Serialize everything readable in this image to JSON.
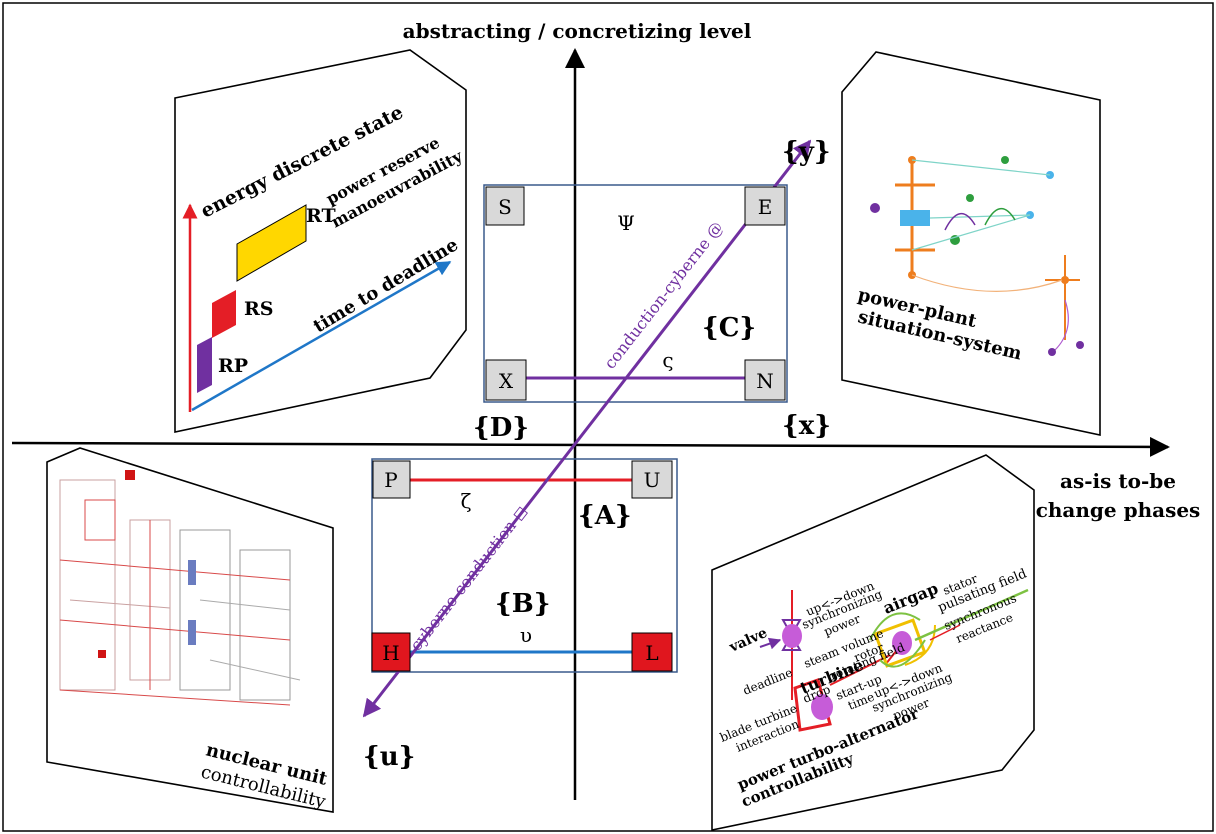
{
  "axes": {
    "vertical_label": "abstracting / concretizing level",
    "horizontal_label_line1": "as-is to-be",
    "horizontal_label_line2": "change phases"
  },
  "sets": {
    "y": "{y}",
    "x": "{x}",
    "u": "{u}",
    "A": "{A}",
    "B": "{B}",
    "C": "{C}",
    "D": "{D}"
  },
  "nodes": {
    "S": "S",
    "E": "E",
    "X": "X",
    "N": "N",
    "P": "P",
    "U": "U",
    "H": "H",
    "L": "L"
  },
  "edges": {
    "psi": "Ψ",
    "sigma": "ς",
    "zeta": "ζ",
    "upsilon": "υ",
    "conduction_cyberne": "conduction-cyberne @",
    "cyberne_conduction": "cyberne-conduction ◻"
  },
  "panel_energy": {
    "y_axis": "energy discrete state",
    "x_axis": "time to deadline",
    "rt": "RT",
    "rs": "RS",
    "rp": "RP",
    "power_reserve": "power reserve",
    "manoeuvrability": "manoeuvrability"
  },
  "panel_powerplant": {
    "line1": "power-plant",
    "line2": "situation-system"
  },
  "panel_nuclear": {
    "line1": "nuclear unit",
    "line2": "controllability"
  },
  "panel_turbo": {
    "line1": "power turbo-alternator",
    "line2": "controllability",
    "valve": "valve",
    "up_down_1": "up<->down",
    "synchronizing_1": "synchronizing",
    "power_1": "power",
    "steam_volume": "steam volume",
    "deadline": "deadline",
    "turbine": "turbine",
    "airgap": "airgap",
    "stator": "stator",
    "pulsating_field": "pulsating field",
    "synchronous": "synchronous",
    "reactance": "reactance",
    "rotor": "rotor",
    "rotating_field": "rotating field",
    "drop": "drop",
    "start_up": "start-up",
    "time": "time",
    "up_down_2": "up<->down",
    "synchronizing_2": "synchronizing",
    "power_2": "power",
    "blade_turbine": "blade turbine",
    "interaction": "interaction"
  },
  "colors": {
    "purple": "#7030a0",
    "red": "#e41e26",
    "blue": "#1f77c8",
    "yellow": "#ffd700",
    "green": "#7dc242",
    "node_grey": "#d9d9d9",
    "node_red": "#e0161e"
  }
}
